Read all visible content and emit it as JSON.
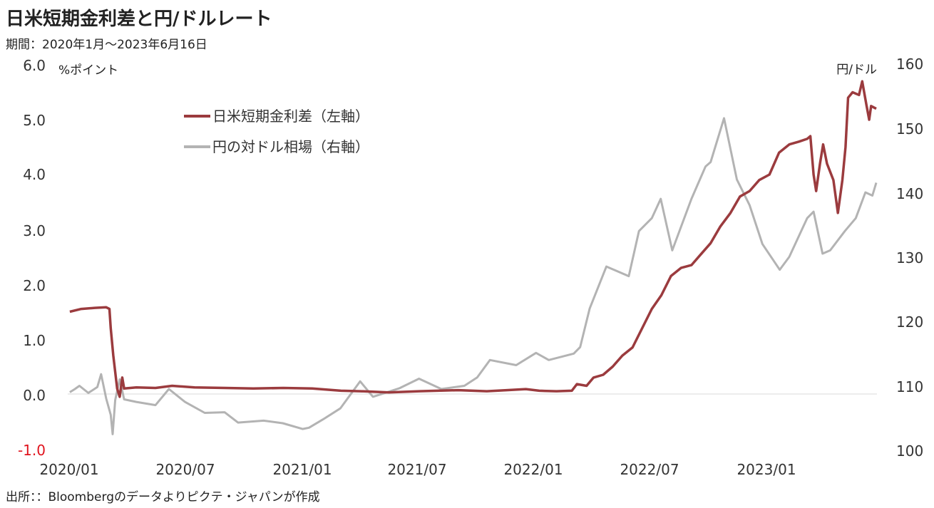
{
  "title": "日米短期金利差と円/ドルレート",
  "subtitle": "期間：2020年1月～2023年6月16日",
  "source": "出所：：Bloombergのデータよりピクテ・ジャパンが作成",
  "colors": {
    "spread": "#9b3b3e",
    "yen": "#b3b3b3",
    "negative_tick": "#e0141e",
    "zero_line": "#e6e6e6"
  },
  "chart_data": {
    "type": "line",
    "title": "日米短期金利差と円/ドルレート",
    "left_axis": {
      "unit_label": "%ポイント",
      "range": [
        -1.0,
        6.0
      ],
      "ticks": [
        "6.0",
        "5.0",
        "4.0",
        "3.0",
        "2.0",
        "1.0",
        "0.0",
        "-1.0"
      ]
    },
    "right_axis": {
      "unit_label": "円/ドル",
      "range": [
        100,
        160
      ],
      "ticks": [
        "160",
        "150",
        "140",
        "130",
        "120",
        "110",
        "100"
      ]
    },
    "x_ticks": [
      "2020/01",
      "2020/07",
      "2021/01",
      "2021/07",
      "2022/01",
      "2022/07",
      "2023/01"
    ],
    "x_range": [
      "2020-01-01",
      "2023-06-16"
    ],
    "legend_position": "top-left",
    "grid": false,
    "series": [
      {
        "name": "日米短期金利差（左軸）",
        "axis": "left",
        "points": [
          [
            "2020-01-02",
            1.5
          ],
          [
            "2020-01-20",
            1.55
          ],
          [
            "2020-02-10",
            1.57
          ],
          [
            "2020-02-28",
            1.58
          ],
          [
            "2020-03-04",
            1.55
          ],
          [
            "2020-03-06",
            1.2
          ],
          [
            "2020-03-10",
            0.7
          ],
          [
            "2020-03-13",
            0.4
          ],
          [
            "2020-03-16",
            0.1
          ],
          [
            "2020-03-20",
            -0.05
          ],
          [
            "2020-03-24",
            0.3
          ],
          [
            "2020-03-27",
            0.1
          ],
          [
            "2020-04-15",
            0.12
          ],
          [
            "2020-05-15",
            0.11
          ],
          [
            "2020-06-10",
            0.15
          ],
          [
            "2020-07-15",
            0.12
          ],
          [
            "2020-09-01",
            0.11
          ],
          [
            "2020-10-15",
            0.1
          ],
          [
            "2020-12-01",
            0.11
          ],
          [
            "2021-01-15",
            0.1
          ],
          [
            "2021-03-01",
            0.06
          ],
          [
            "2021-04-01",
            0.05
          ],
          [
            "2021-05-15",
            0.03
          ],
          [
            "2021-07-01",
            0.05
          ],
          [
            "2021-09-01",
            0.07
          ],
          [
            "2021-10-15",
            0.05
          ],
          [
            "2021-11-15",
            0.07
          ],
          [
            "2021-12-15",
            0.09
          ],
          [
            "2022-01-05",
            0.06
          ],
          [
            "2022-02-01",
            0.05
          ],
          [
            "2022-02-25",
            0.06
          ],
          [
            "2022-03-05",
            0.18
          ],
          [
            "2022-03-20",
            0.15
          ],
          [
            "2022-03-31",
            0.3
          ],
          [
            "2022-04-15",
            0.35
          ],
          [
            "2022-04-30",
            0.5
          ],
          [
            "2022-05-15",
            0.7
          ],
          [
            "2022-05-31",
            0.85
          ],
          [
            "2022-06-15",
            1.2
          ],
          [
            "2022-06-30",
            1.55
          ],
          [
            "2022-07-15",
            1.8
          ],
          [
            "2022-07-30",
            2.15
          ],
          [
            "2022-08-15",
            2.3
          ],
          [
            "2022-08-31",
            2.35
          ],
          [
            "2022-09-15",
            2.55
          ],
          [
            "2022-09-30",
            2.75
          ],
          [
            "2022-10-15",
            3.05
          ],
          [
            "2022-10-31",
            3.3
          ],
          [
            "2022-11-15",
            3.6
          ],
          [
            "2022-11-30",
            3.7
          ],
          [
            "2022-12-15",
            3.9
          ],
          [
            "2022-12-31",
            4.0
          ],
          [
            "2023-01-15",
            4.4
          ],
          [
            "2023-01-31",
            4.55
          ],
          [
            "2023-02-15",
            4.6
          ],
          [
            "2023-02-28",
            4.65
          ],
          [
            "2023-03-05",
            4.7
          ],
          [
            "2023-03-10",
            4.0
          ],
          [
            "2023-03-14",
            3.7
          ],
          [
            "2023-03-20",
            4.2
          ],
          [
            "2023-03-25",
            4.55
          ],
          [
            "2023-03-31",
            4.2
          ],
          [
            "2023-04-10",
            3.9
          ],
          [
            "2023-04-17",
            3.3
          ],
          [
            "2023-04-24",
            3.9
          ],
          [
            "2023-04-29",
            4.5
          ],
          [
            "2023-05-03",
            5.4
          ],
          [
            "2023-05-10",
            5.5
          ],
          [
            "2023-05-20",
            5.45
          ],
          [
            "2023-05-25",
            5.7
          ],
          [
            "2023-06-01",
            5.25
          ],
          [
            "2023-06-05",
            5.0
          ],
          [
            "2023-06-08",
            5.25
          ],
          [
            "2023-06-16",
            5.2
          ]
        ]
      },
      {
        "name": "円の対ドル相場（右軸）",
        "axis": "right",
        "points": [
          [
            "2020-01-02",
            109.0
          ],
          [
            "2020-01-10",
            109.5
          ],
          [
            "2020-01-17",
            110.0
          ],
          [
            "2020-01-31",
            108.9
          ],
          [
            "2020-02-14",
            109.8
          ],
          [
            "2020-02-20",
            111.8
          ],
          [
            "2020-02-28",
            108.0
          ],
          [
            "2020-03-06",
            105.5
          ],
          [
            "2020-03-09",
            102.5
          ],
          [
            "2020-03-13",
            107.8
          ],
          [
            "2020-03-20",
            111.0
          ],
          [
            "2020-03-27",
            107.9
          ],
          [
            "2020-04-15",
            107.5
          ],
          [
            "2020-05-15",
            107.0
          ],
          [
            "2020-06-05",
            109.5
          ],
          [
            "2020-06-30",
            107.5
          ],
          [
            "2020-07-31",
            105.8
          ],
          [
            "2020-08-31",
            105.9
          ],
          [
            "2020-09-21",
            104.3
          ],
          [
            "2020-10-31",
            104.6
          ],
          [
            "2020-11-30",
            104.2
          ],
          [
            "2020-12-31",
            103.3
          ],
          [
            "2021-01-10",
            103.5
          ],
          [
            "2021-02-01",
            104.8
          ],
          [
            "2021-02-28",
            106.5
          ],
          [
            "2021-03-31",
            110.7
          ],
          [
            "2021-04-20",
            108.3
          ],
          [
            "2021-05-31",
            109.6
          ],
          [
            "2021-07-01",
            111.1
          ],
          [
            "2021-08-05",
            109.5
          ],
          [
            "2021-09-10",
            110.0
          ],
          [
            "2021-09-30",
            111.3
          ],
          [
            "2021-10-20",
            114.0
          ],
          [
            "2021-11-30",
            113.2
          ],
          [
            "2021-12-31",
            115.1
          ],
          [
            "2022-01-20",
            114.0
          ],
          [
            "2022-02-28",
            115.0
          ],
          [
            "2022-03-10",
            116.0
          ],
          [
            "2022-03-25",
            122.0
          ],
          [
            "2022-04-20",
            128.5
          ],
          [
            "2022-05-25",
            127.0
          ],
          [
            "2022-06-10",
            134.0
          ],
          [
            "2022-06-30",
            136.0
          ],
          [
            "2022-07-14",
            139.0
          ],
          [
            "2022-08-01",
            131.0
          ],
          [
            "2022-08-31",
            139.0
          ],
          [
            "2022-09-22",
            144.0
          ],
          [
            "2022-09-30",
            144.7
          ],
          [
            "2022-10-21",
            151.5
          ],
          [
            "2022-11-10",
            142.0
          ],
          [
            "2022-11-30",
            138.0
          ],
          [
            "2022-12-20",
            132.0
          ],
          [
            "2023-01-16",
            128.0
          ],
          [
            "2023-01-31",
            130.0
          ],
          [
            "2023-02-28",
            136.0
          ],
          [
            "2023-03-10",
            137.0
          ],
          [
            "2023-03-24",
            130.5
          ],
          [
            "2023-04-05",
            131.0
          ],
          [
            "2023-04-28",
            134.0
          ],
          [
            "2023-05-15",
            136.0
          ],
          [
            "2023-05-30",
            140.0
          ],
          [
            "2023-06-10",
            139.5
          ],
          [
            "2023-06-16",
            141.5
          ]
        ]
      }
    ]
  }
}
